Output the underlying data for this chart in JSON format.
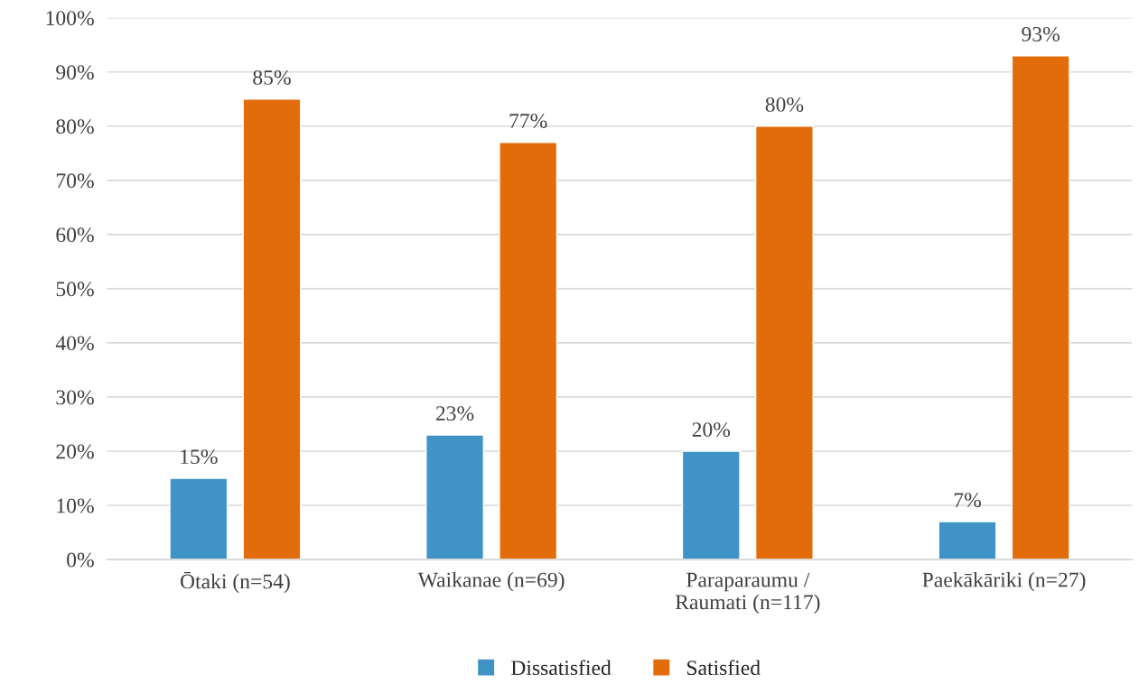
{
  "chart_data": {
    "type": "bar",
    "categories": [
      "Ōtaki (n=54)",
      "Waikanae (n=69)",
      "Paraparaumu /\nRaumati (n=117)",
      "Paekākāriki (n=27)"
    ],
    "series": [
      {
        "name": "Dissatisfied",
        "color": "#3f93c6",
        "values": [
          15,
          23,
          20,
          7
        ],
        "value_labels": [
          "15%",
          "23%",
          "20%",
          "7%"
        ]
      },
      {
        "name": "Satisfied",
        "color": "#e36c0a",
        "values": [
          85,
          77,
          80,
          93
        ],
        "value_labels": [
          "85%",
          "77%",
          "80%",
          "93%"
        ]
      }
    ],
    "ylim": [
      0,
      100
    ],
    "yticks": [
      {
        "value": 0,
        "label": "0%"
      },
      {
        "value": 10,
        "label": "10%"
      },
      {
        "value": 20,
        "label": "20%"
      },
      {
        "value": 30,
        "label": "30%"
      },
      {
        "value": 40,
        "label": "40%"
      },
      {
        "value": 50,
        "label": "50%"
      },
      {
        "value": 60,
        "label": "60%"
      },
      {
        "value": 70,
        "label": "70%"
      },
      {
        "value": 80,
        "label": "80%"
      },
      {
        "value": 90,
        "label": "90%"
      },
      {
        "value": 100,
        "label": "100%"
      }
    ],
    "grid": "y",
    "legend": "bottom"
  }
}
